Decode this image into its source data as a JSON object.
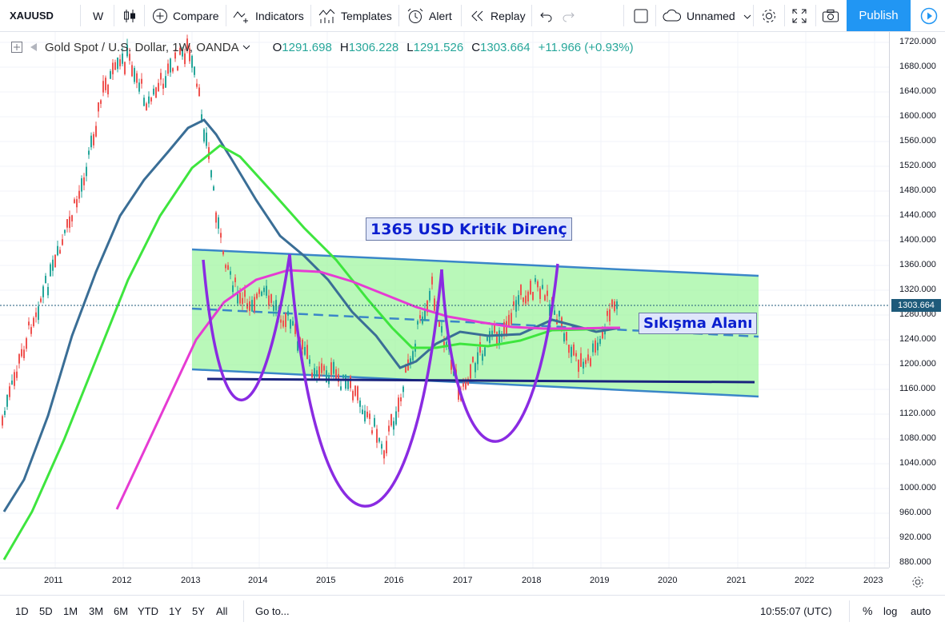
{
  "toolbar": {
    "symbol": "XAUUSD",
    "interval": "W",
    "compare": "Compare",
    "indicators": "Indicators",
    "templates": "Templates",
    "alert": "Alert",
    "replay": "Replay",
    "layout_name": "Unnamed",
    "publish": "Publish"
  },
  "legend": {
    "title": "Gold Spot / U.S. Dollar, 1W, OANDA",
    "open_label": "O",
    "open": "1291.698",
    "high_label": "H",
    "high": "1306.228",
    "low_label": "L",
    "low": "1291.526",
    "close_label": "C",
    "close": "1303.664",
    "change": "+11.966 (+0.93%)"
  },
  "annotations": {
    "resistance": "1365 USD Kritik Direnç",
    "squeeze": "Sıkışma Alanı"
  },
  "price_axis": {
    "labels": [
      "1720.000",
      "1680.000",
      "1640.000",
      "1600.000",
      "1560.000",
      "1520.000",
      "1480.000",
      "1440.000",
      "1400.000",
      "1360.000",
      "1320.000",
      "1280.000",
      "1240.000",
      "1200.000",
      "1160.000",
      "1120.000",
      "1080.000",
      "1040.000",
      "1000.000",
      "960.000",
      "920.000",
      "880.000"
    ],
    "current": "1303.664"
  },
  "time_axis": {
    "labels": [
      "2011",
      "2012",
      "2013",
      "2014",
      "2015",
      "2016",
      "2017",
      "2018",
      "2019",
      "2020",
      "2021",
      "2022",
      "2023"
    ]
  },
  "bottom": {
    "ranges": [
      "1D",
      "5D",
      "1M",
      "3M",
      "6M",
      "YTD",
      "1Y",
      "5Y",
      "All"
    ],
    "goto": "Go to...",
    "clock": "10:55:07 (UTC)",
    "percent": "%",
    "log": "log",
    "auto": "auto"
  },
  "colors": {
    "up": "#26a69a",
    "down": "#ef5350",
    "channel_fill": "#9ef59e",
    "ma_blue": "#3a6e96",
    "ma_green": "#3ee53e",
    "ma_magenta": "#e63bd3",
    "ma_teal": "#2e8b73",
    "arc_purple": "#8a2be2",
    "accent": "#2196f3"
  }
}
